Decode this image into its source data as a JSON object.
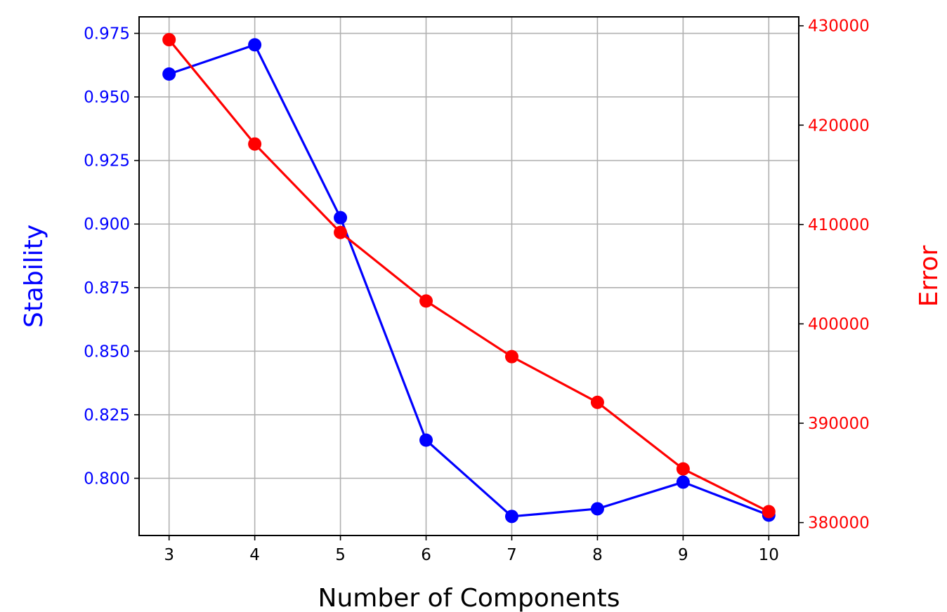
{
  "chart_data": {
    "type": "line",
    "xlabel": "Number of Components",
    "ylabel_left": "Stability",
    "ylabel_right": "Error",
    "x": [
      3,
      4,
      5,
      6,
      7,
      8,
      9,
      10
    ],
    "x_ticks": [
      "3",
      "4",
      "5",
      "6",
      "7",
      "8",
      "9",
      "10"
    ],
    "xlim": [
      2.65,
      10.35
    ],
    "ylim_left": [
      0.7775,
      0.9815
    ],
    "ylim_right": [
      378700,
      430900
    ],
    "y_ticks_left": [
      "0.800",
      "0.825",
      "0.850",
      "0.875",
      "0.900",
      "0.925",
      "0.950",
      "0.975"
    ],
    "y_ticks_right": [
      "380000",
      "390000",
      "400000",
      "410000",
      "420000",
      "430000"
    ],
    "grid": true,
    "series": [
      {
        "axis": "left",
        "color": "#0000ff",
        "values": [
          0.959,
          0.9705,
          0.9025,
          0.815,
          0.785,
          0.788,
          0.7985,
          0.7855
        ]
      },
      {
        "axis": "right",
        "color": "#ff0000",
        "values": [
          428600,
          418100,
          409200,
          402300,
          396700,
          392100,
          385400,
          381100
        ]
      }
    ]
  }
}
